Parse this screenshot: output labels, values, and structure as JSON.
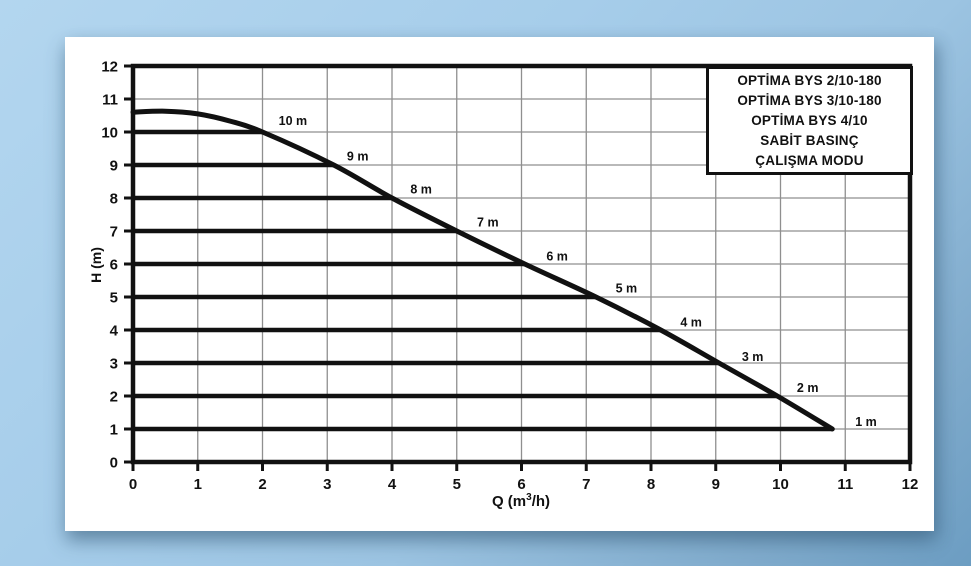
{
  "page": {
    "background_top_color": "#a6cdea",
    "background_bottom_color": "#6c9dc2",
    "panel_color": "#ffffff"
  },
  "chart_data": {
    "type": "line",
    "title": "",
    "ylabel": "H (m)",
    "xlabel_parts": {
      "prefix": "Q (m",
      "sup": "3",
      "suffix": "/h)"
    },
    "xlim": [
      0,
      12
    ],
    "ylim": [
      0,
      12
    ],
    "x_ticks": [
      "0",
      "1",
      "2",
      "3",
      "4",
      "5",
      "6",
      "7",
      "8",
      "9",
      "10",
      "11",
      "12"
    ],
    "y_ticks": [
      "0",
      "1",
      "2",
      "3",
      "4",
      "5",
      "6",
      "7",
      "8",
      "9",
      "10",
      "11",
      "12"
    ],
    "grid": true,
    "legend_position": "top-right",
    "main_curve": {
      "name": "pump-performance-curve",
      "points": [
        [
          0,
          10.6
        ],
        [
          0.5,
          10.63
        ],
        [
          1.0,
          10.55
        ],
        [
          1.5,
          10.33
        ],
        [
          2.0,
          10.0
        ],
        [
          3.1,
          9.0
        ],
        [
          4.0,
          8.0
        ],
        [
          5.0,
          7.0
        ],
        [
          6.05,
          6.0
        ],
        [
          7.15,
          5.0
        ],
        [
          8.15,
          4.0
        ],
        [
          9.05,
          3.0
        ],
        [
          9.95,
          2.0
        ],
        [
          10.8,
          1.0
        ]
      ]
    },
    "constant_pressure_lines": [
      {
        "h": 10,
        "end_q": 2.0,
        "label": "10 m",
        "label_q": 2.47,
        "label_h": 10.35
      },
      {
        "h": 9,
        "end_q": 3.1,
        "label": "9 m",
        "label_q": 3.47,
        "label_h": 9.28
      },
      {
        "h": 8,
        "end_q": 4.0,
        "label": "8 m",
        "label_q": 4.45,
        "label_h": 8.28
      },
      {
        "h": 7,
        "end_q": 5.0,
        "label": "7 m",
        "label_q": 5.48,
        "label_h": 7.28
      },
      {
        "h": 6,
        "end_q": 6.05,
        "label": "6 m",
        "label_q": 6.55,
        "label_h": 6.24
      },
      {
        "h": 5,
        "end_q": 7.15,
        "label": "5 m",
        "label_q": 7.62,
        "label_h": 5.28
      },
      {
        "h": 4,
        "end_q": 8.15,
        "label": "4 m",
        "label_q": 8.62,
        "label_h": 4.24
      },
      {
        "h": 3,
        "end_q": 9.05,
        "label": "3 m",
        "label_q": 9.57,
        "label_h": 3.2
      },
      {
        "h": 2,
        "end_q": 9.95,
        "label": "2 m",
        "label_q": 10.42,
        "label_h": 2.26
      },
      {
        "h": 1,
        "end_q": 10.8,
        "label": "1 m",
        "label_q": 11.32,
        "label_h": 1.22
      }
    ],
    "legend": {
      "lines": [
        "OPTİMA BYS 2/10-180",
        "OPTİMA BYS 3/10-180",
        "OPTİMA BYS 4/10",
        "SABİT BASINÇ",
        "ÇALIŞMA MODU"
      ]
    },
    "colors": {
      "curve": "#111111",
      "pressure_line": "#111111",
      "grid": "#8f8f8f",
      "axis": "#111111",
      "tick_label": "#111111"
    }
  }
}
